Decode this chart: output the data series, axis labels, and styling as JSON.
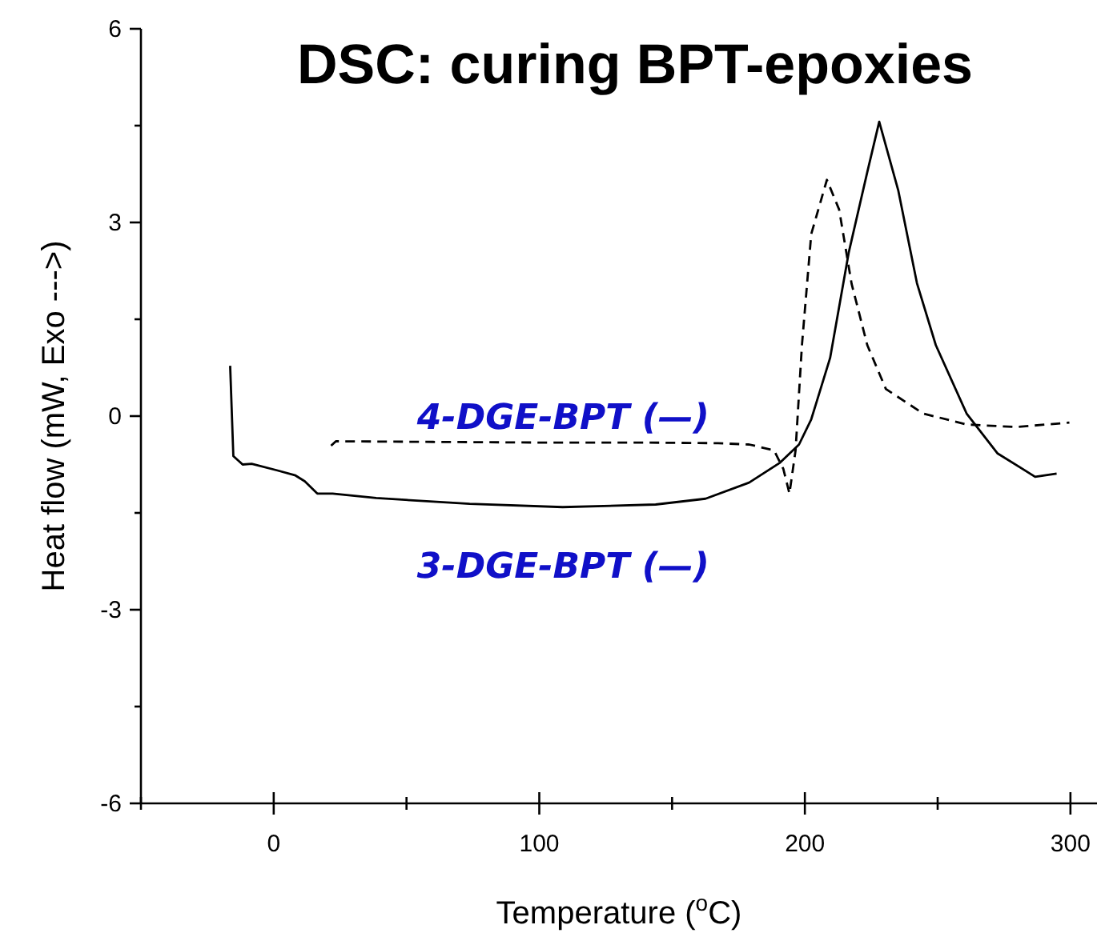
{
  "chart_data": {
    "type": "line",
    "title": "DSC: curing BPT-epoxies",
    "xlabel": "Temperature ($^{o}$C)",
    "ylabel": "Heat flow (mW, Exo --->)",
    "xlim": [
      -50,
      310
    ],
    "xticks": [
      {
        "value": -50,
        "label": null
      },
      0,
      {
        "value": 50,
        "label": null
      },
      100,
      {
        "value": 150,
        "label": null
      },
      200,
      {
        "value": 250,
        "label": null
      },
      300
    ],
    "ylim": [
      -6,
      6
    ],
    "yticks": [
      -6,
      {
        "value": -4.5,
        "label": null
      },
      -3,
      {
        "value": -1.5,
        "label": null
      },
      0,
      {
        "value": 1.5,
        "label": null
      },
      3,
      {
        "value": 4.5,
        "label": null
      },
      6
    ],
    "grid": false,
    "legend": false,
    "marker": "none",
    "annotations": [
      "4-DGE-BPT (—)",
      "3-DGE-BPT (—)"
    ],
    "series": [
      {
        "color": "#000000",
        "line_style": "solid",
        "x": [
          -16.4,
          -15.2,
          -11.7,
          -8.3,
          1.2,
          8.2,
          11.7,
          16.4,
          22.2,
          38.6,
          73.8,
          108.8,
          143.8,
          162.6,
          179,
          190.7,
          197.8,
          202.4,
          209.5,
          216.5,
          223.5,
          228,
          235.2,
          242.2,
          249.3,
          260.9,
          272.6,
          286.7,
          294.8
        ],
        "values": [
          0.78,
          -0.62,
          -0.75,
          -0.74,
          -0.84,
          -0.92,
          -1.01,
          -1.2,
          -1.2,
          -1.27,
          -1.36,
          -1.41,
          -1.37,
          -1.28,
          -1.03,
          -0.72,
          -0.44,
          -0.05,
          0.9,
          2.53,
          3.78,
          4.56,
          3.49,
          2.06,
          1.1,
          0.04,
          -0.58,
          -0.94,
          -0.89
        ]
      },
      {
        "color": "#000000",
        "line_style": "dashed",
        "x": [
          21.6,
          23.4,
          60,
          100,
          140,
          167.3,
          179,
          188.4,
          191.9,
          194.2,
          196.5,
          198.9,
          202.4,
          208.3,
          212.9,
          217.6,
          223.5,
          230.5,
          244.5,
          260.9,
          279.6,
          299.6
        ],
        "values": [
          -0.46,
          -0.39,
          -0.4,
          -0.41,
          -0.41,
          -0.42,
          -0.44,
          -0.53,
          -0.82,
          -1.2,
          -0.53,
          1.1,
          2.82,
          3.66,
          3.2,
          2.05,
          1.1,
          0.42,
          0.04,
          -0.13,
          -0.17,
          -0.1
        ]
      }
    ]
  }
}
